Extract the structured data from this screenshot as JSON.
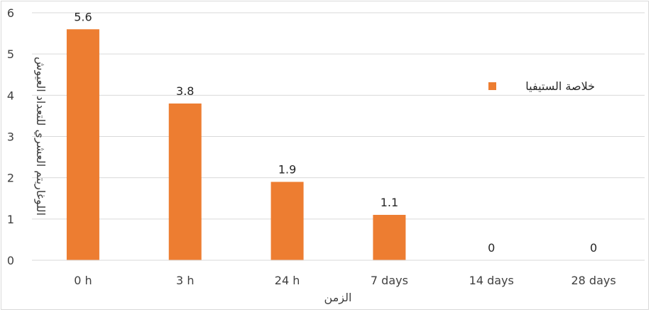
{
  "chart_data": {
    "type": "bar",
    "categories": [
      "0 h",
      "3 h",
      "24 h",
      "7 days",
      "14 days",
      "28 days"
    ],
    "series": [
      {
        "name": "خلاصة الستيفيا",
        "values": [
          5.6,
          3.8,
          1.9,
          1.1,
          0,
          0
        ],
        "color": "#ED7D31"
      }
    ],
    "data_labels": [
      "5.6",
      "3.8",
      "1.9",
      "1.1",
      "0",
      "0"
    ],
    "xlabel": "الزمن",
    "ylabel": "اللوغاريتم العشري للتعداد العيوش",
    "ylim": [
      0,
      6
    ],
    "yticks": [
      0,
      1,
      2,
      3,
      4,
      5,
      6
    ],
    "grid": true,
    "legend_position": "right"
  }
}
